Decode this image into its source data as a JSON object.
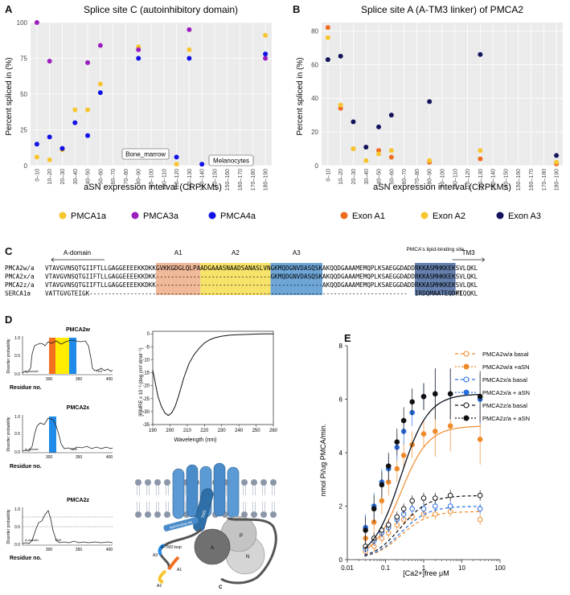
{
  "panel_letters": {
    "a": "A",
    "b": "B",
    "c": "C",
    "d": "D",
    "e": "E"
  },
  "chart_data": [
    {
      "id": "A",
      "type": "scatter",
      "title": "Splice site C (autoinhibitory domain)",
      "xlabel": "aSN expression interval (CRPKMs)",
      "ylabel": "Percent spliced in (%)",
      "categories": [
        "0–10",
        "10–20",
        "20–30",
        "30–40",
        "40–50",
        "50–60",
        "60–70",
        "70–80",
        "80–90",
        "90–100",
        "100–110",
        "110–120",
        "120–130",
        "130–140",
        "140–150",
        "150–160",
        "160–170",
        "170–180",
        "180–190"
      ],
      "yticks": [
        0,
        25,
        50,
        75,
        100
      ],
      "ylim": [
        0,
        100
      ],
      "annotations": [
        "Bone_marrow",
        "Melanocytes"
      ],
      "series": [
        {
          "name": "PMCA1a",
          "color": "#f7c52f",
          "points": [
            [
              0,
              6
            ],
            [
              1,
              4
            ],
            [
              2,
              11
            ],
            [
              3,
              39
            ],
            [
              4,
              39
            ],
            [
              5,
              57
            ],
            [
              8,
              83
            ],
            [
              11,
              1
            ],
            [
              12,
              81
            ],
            [
              18,
              91
            ]
          ]
        },
        {
          "name": "PMCA3a",
          "color": "#9b1fbf",
          "points": [
            [
              0,
              100
            ],
            [
              1,
              73
            ],
            [
              2,
              12
            ],
            [
              4,
              72
            ],
            [
              5,
              84
            ],
            [
              8,
              81
            ],
            [
              12,
              95
            ],
            [
              18,
              75
            ]
          ]
        },
        {
          "name": "PMCA4a",
          "color": "#1212e6",
          "points": [
            [
              0,
              15
            ],
            [
              1,
              20
            ],
            [
              2,
              12
            ],
            [
              3,
              30
            ],
            [
              4,
              21
            ],
            [
              5,
              51
            ],
            [
              8,
              75
            ],
            [
              11,
              6
            ],
            [
              12,
              75
            ],
            [
              13,
              1
            ],
            [
              18,
              78
            ]
          ]
        }
      ]
    },
    {
      "id": "B",
      "type": "scatter",
      "title": "Splice site A (A-TM3 linker) of PMCA2",
      "xlabel": "aSN expression interval (CRPKMs)",
      "ylabel": "Percent spliced in (%)",
      "categories": [
        "0–10",
        "10–20",
        "20–30",
        "30–40",
        "40–50",
        "50–60",
        "60–70",
        "70–80",
        "80–90",
        "90–100",
        "100–110",
        "110–120",
        "120–130",
        "130–140",
        "140–150",
        "150–160",
        "160–170",
        "170–180",
        "180–190"
      ],
      "yticks": [
        0,
        20,
        40,
        60,
        80
      ],
      "ylim": [
        0,
        85
      ],
      "series": [
        {
          "name": "Exon A1",
          "color": "#ef6c1f",
          "points": [
            [
              0,
              82
            ],
            [
              1,
              34
            ],
            [
              2,
              10
            ],
            [
              4,
              9
            ],
            [
              5,
              5
            ],
            [
              8,
              2
            ],
            [
              12,
              4
            ],
            [
              18,
              1
            ]
          ]
        },
        {
          "name": "Exon A2",
          "color": "#f7c52f",
          "points": [
            [
              0,
              76
            ],
            [
              1,
              36
            ],
            [
              2,
              10
            ],
            [
              3,
              3
            ],
            [
              4,
              7
            ],
            [
              5,
              9
            ],
            [
              8,
              3
            ],
            [
              12,
              9
            ],
            [
              18,
              2
            ]
          ]
        },
        {
          "name": "Exon A3",
          "color": "#14145c",
          "points": [
            [
              0,
              63
            ],
            [
              1,
              65
            ],
            [
              2,
              26
            ],
            [
              3,
              11
            ],
            [
              4,
              23
            ],
            [
              5,
              30
            ],
            [
              8,
              38
            ],
            [
              12,
              66
            ],
            [
              18,
              6
            ]
          ]
        }
      ]
    },
    {
      "id": "D-CD",
      "type": "line",
      "xlabel": "Wavelength (nm)",
      "ylabel": "[θ]MRE x 10⁻³ (deg cm² dmol⁻¹)",
      "xticks": [
        190,
        200,
        210,
        220,
        230,
        240,
        250,
        260
      ],
      "yticks": [
        0,
        -5,
        -10,
        -15,
        -20,
        -25,
        -30,
        -35
      ],
      "xlim": [
        190,
        260
      ],
      "ylim": [
        -35,
        1
      ],
      "x": [
        190,
        193,
        195,
        197,
        199,
        201,
        203,
        205,
        208,
        211,
        214,
        217,
        220,
        223,
        226,
        230,
        235,
        240,
        245,
        250,
        255,
        260
      ],
      "y": [
        -14,
        -24,
        -28,
        -30.5,
        -31.5,
        -30.5,
        -28,
        -24,
        -17,
        -11.5,
        -8,
        -5.5,
        -3.5,
        -2.3,
        -1.5,
        -0.9,
        -0.5,
        -0.3,
        -0.2,
        -0.1,
        0,
        0
      ]
    },
    {
      "id": "E",
      "type": "line",
      "xlabel": "[Ca2+]free μM",
      "ylabel": "nmol Pi/ug PMCA/min.",
      "xticks": [
        "0.01",
        "0.1",
        "1",
        "10",
        "100"
      ],
      "yticks": [
        0,
        2,
        4,
        6,
        8
      ],
      "ylim": [
        0,
        8
      ],
      "x": [
        0.03,
        0.05,
        0.08,
        0.12,
        0.2,
        0.3,
        0.5,
        1,
        2,
        5,
        30
      ],
      "series": [
        {
          "name": "PMCA2w/a basal",
          "color": "#ef8a2a",
          "filled": false,
          "values": [
            0.3,
            0.5,
            0.8,
            1.0,
            1.3,
            1.5,
            1.6,
            1.7,
            1.7,
            1.8,
            1.5
          ]
        },
        {
          "name": "PMCA2w/a +aSN",
          "color": "#ef8a2a",
          "filled": true,
          "values": [
            0.8,
            1.4,
            2.2,
            2.9,
            3.4,
            3.9,
            4.3,
            4.7,
            4.8,
            5.0,
            4.5
          ]
        },
        {
          "name": "PMCA2x/a basal",
          "color": "#2a6fe0",
          "filled": false,
          "values": [
            0.4,
            0.7,
            1.0,
            1.2,
            1.5,
            1.7,
            1.9,
            1.9,
            2.0,
            2.0,
            1.9
          ]
        },
        {
          "name": "PMCA2x/a + aSN",
          "color": "#2a6fe0",
          "filled": true,
          "values": [
            1.2,
            2.0,
            2.9,
            3.4,
            4.2,
            4.8,
            5.5,
            6.1,
            6.2,
            6.2,
            6.0
          ]
        },
        {
          "name": "PMCA2z/a basal",
          "color": "#111111",
          "filled": false,
          "values": [
            0.5,
            0.8,
            1.1,
            1.3,
            1.6,
            1.9,
            2.2,
            2.3,
            2.3,
            2.4,
            2.4
          ]
        },
        {
          "name": "PMCA2z/a + aSN",
          "color": "#111111",
          "filled": true,
          "values": [
            1.1,
            1.9,
            2.8,
            3.5,
            4.4,
            5.2,
            5.9,
            6.1,
            6.2,
            6.2,
            6.1
          ]
        }
      ]
    }
  ],
  "panelC": {
    "labels": {
      "a_domain": "A-domain",
      "a1": "A1",
      "a2": "A2",
      "a3": "A3",
      "lipid": "PMCA's lipid-binding site",
      "tm3": "TM3"
    },
    "rows": [
      {
        "name": "PMCA2w/a",
        "pre": "VTAVGVNSQTGIIFTLLGAGGEEEEKKDKK",
        "a1": "GVKKGDGLQLPA",
        "a2": "ADGAAASNAADSANASLVN",
        "a3": "GKMQDGNVDASQSK",
        "mid": "AKQQDGAAAMEMQPLKSAEGGDADD",
        "lipid": "RKKASMHKKEK",
        "end": "SVLQKL"
      },
      {
        "name": "PMCA2x/a",
        "pre": "VTAVGVNSQTGIIFTLLGAGGEEEEKKDKK",
        "a1": "------------",
        "a2": "-------------------",
        "a3": "GKMQDGNVDASQSK",
        "mid": "AKQQDGAAAMEMQPLKSAEGGDADD",
        "lipid": "RKKASMHKKEK",
        "end": "SVLQKL"
      },
      {
        "name": "PMCA2z/a",
        "pre": "VTAVGVNSQTGIIFTLLGAGGEEEEKKDKK",
        "a1": "------------",
        "a2": "-------------------",
        "a3": "--------------",
        "mid": "AKQQDGAAAMEMQPLKSAEGGDADD",
        "lipid": "RKKASMHKKEK",
        "end": "SVLQKL"
      },
      {
        "name": "SERCA1a",
        "pre": "VATTGVGTEIGK------------------",
        "a1": "------------",
        "a2": "-------------------",
        "a3": "--------------",
        "mid": "-----------------------",
        "lipid": "IRDQMAATEQDKT",
        "end": "PLQQKL"
      }
    ]
  },
  "panelD": {
    "profiles": [
      {
        "title": "PMCA2w",
        "ylabel": "Disorder probability",
        "xlabel": "Residue no.",
        "yticks": [
          "1.0",
          "0.5",
          "0.0"
        ],
        "xticks": [
          "300",
          "350",
          "400"
        ],
        "domain_label": "A domain",
        "tm_label": "TM3"
      },
      {
        "title": "PMCA2x",
        "ylabel": "Disorder probability",
        "xlabel": "Residue no.",
        "yticks": [
          "1.0",
          "0.5",
          "0.0"
        ],
        "xticks": [
          "300",
          "350",
          "400"
        ],
        "domain_label": "A domain",
        "tm_label": "TM3"
      },
      {
        "title": "PMCA2z",
        "ylabel": "Disorder probability",
        "xlabel": "Residue no.",
        "yticks": [
          "1.0",
          "0.5",
          "0.0"
        ],
        "xticks": [
          "300",
          "350",
          "400"
        ],
        "domain_label": "A domain",
        "tm_label": "TM3"
      }
    ],
    "cartoon": {
      "tm3": "TM3",
      "lipid_site": "lipid-binding site",
      "loop": "A-TM3 loop",
      "a3": "A3",
      "a2": "A2",
      "a1": "A1",
      "a": "A",
      "p": "P",
      "n": "N",
      "c": "C"
    }
  }
}
